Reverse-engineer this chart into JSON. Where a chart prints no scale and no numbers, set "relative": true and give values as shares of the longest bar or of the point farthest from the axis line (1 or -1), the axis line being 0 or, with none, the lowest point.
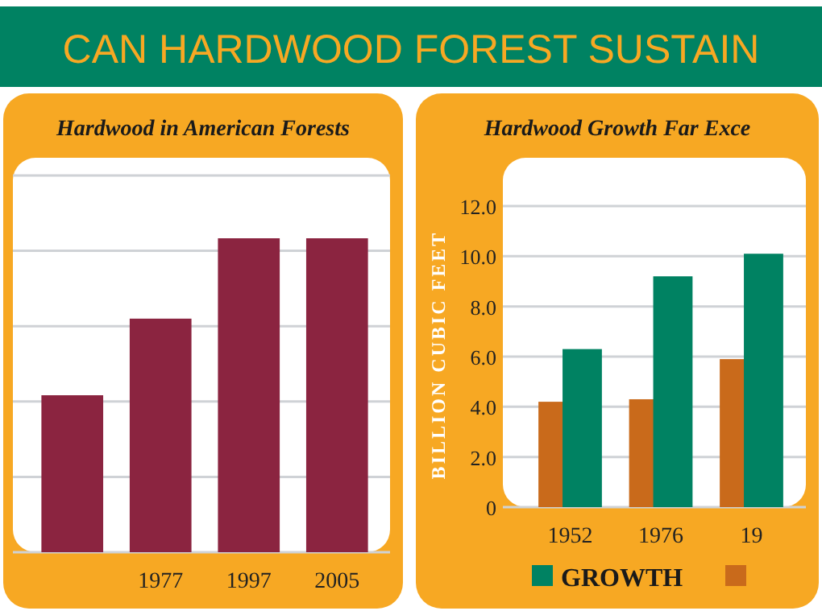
{
  "chart_data": [
    {
      "type": "other",
      "title": "CAN HARDWOOD FOREST SUSTAIN"
    },
    {
      "type": "bar",
      "title": "Hardwood in American Forests",
      "categories": [
        null,
        "1977",
        "1997",
        "2005"
      ],
      "values": [
        0.5,
        0.744,
        1,
        1
      ],
      "color": "#8b2440",
      "relative": true,
      "grid": true
    },
    {
      "type": "bar",
      "title": "Hardwood Growth Far Exce",
      "ylabel": "BILLION CUBIC FEET",
      "categories": [
        "1952",
        "1976",
        "19"
      ],
      "series": [
        {
          "name": "GROWTH",
          "color": "#008262",
          "values": [
            6.3,
            9.2,
            10.1
          ]
        },
        {
          "color": "#c96a1b",
          "values": [
            4.2,
            4.3,
            5.9
          ]
        }
      ],
      "ylim": [
        0,
        12
      ],
      "yticks": [
        0,
        {
          "value": 2,
          "label": "2.0"
        },
        {
          "value": 4,
          "label": "4.0"
        },
        {
          "value": 6,
          "label": "6.0"
        },
        {
          "value": 8,
          "label": "8.0"
        },
        {
          "value": 10,
          "label": "10.0"
        },
        {
          "value": 12,
          "label": "12.0"
        }
      ],
      "grid": "y",
      "legend": "bottom"
    }
  ]
}
